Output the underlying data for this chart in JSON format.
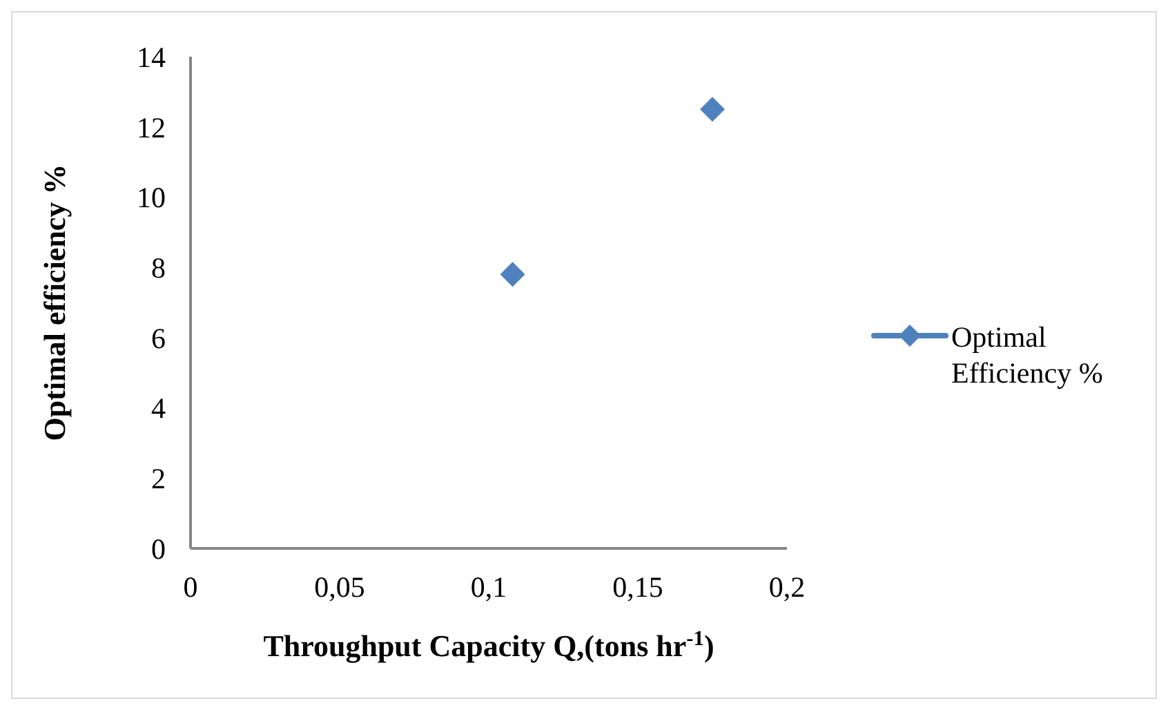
{
  "chart_data": {
    "type": "scatter",
    "xlabel": "Throughput Capacity Q,(tons hr$^{-1}$)",
    "ylabel": "Optimal efficiency %",
    "series": [
      {
        "name": "Optimal Efficiency %",
        "color": "#4f81bd",
        "x": [
          0.108,
          0.175
        ],
        "values": [
          7.8,
          12.5
        ]
      }
    ],
    "xlim": [
      0,
      0.2
    ],
    "xticks": [
      0,
      {
        "value": 0.05,
        "label": "0,05"
      },
      {
        "value": 0.1,
        "label": "0,1"
      },
      {
        "value": 0.15,
        "label": "0,15"
      },
      {
        "value": 0.2,
        "label": "0,2"
      }
    ],
    "ylim": [
      0,
      14
    ],
    "yticks": [
      0,
      2,
      4,
      6,
      8,
      10,
      12,
      14
    ],
    "marker": "diamond",
    "legend": "right",
    "grid": false
  }
}
